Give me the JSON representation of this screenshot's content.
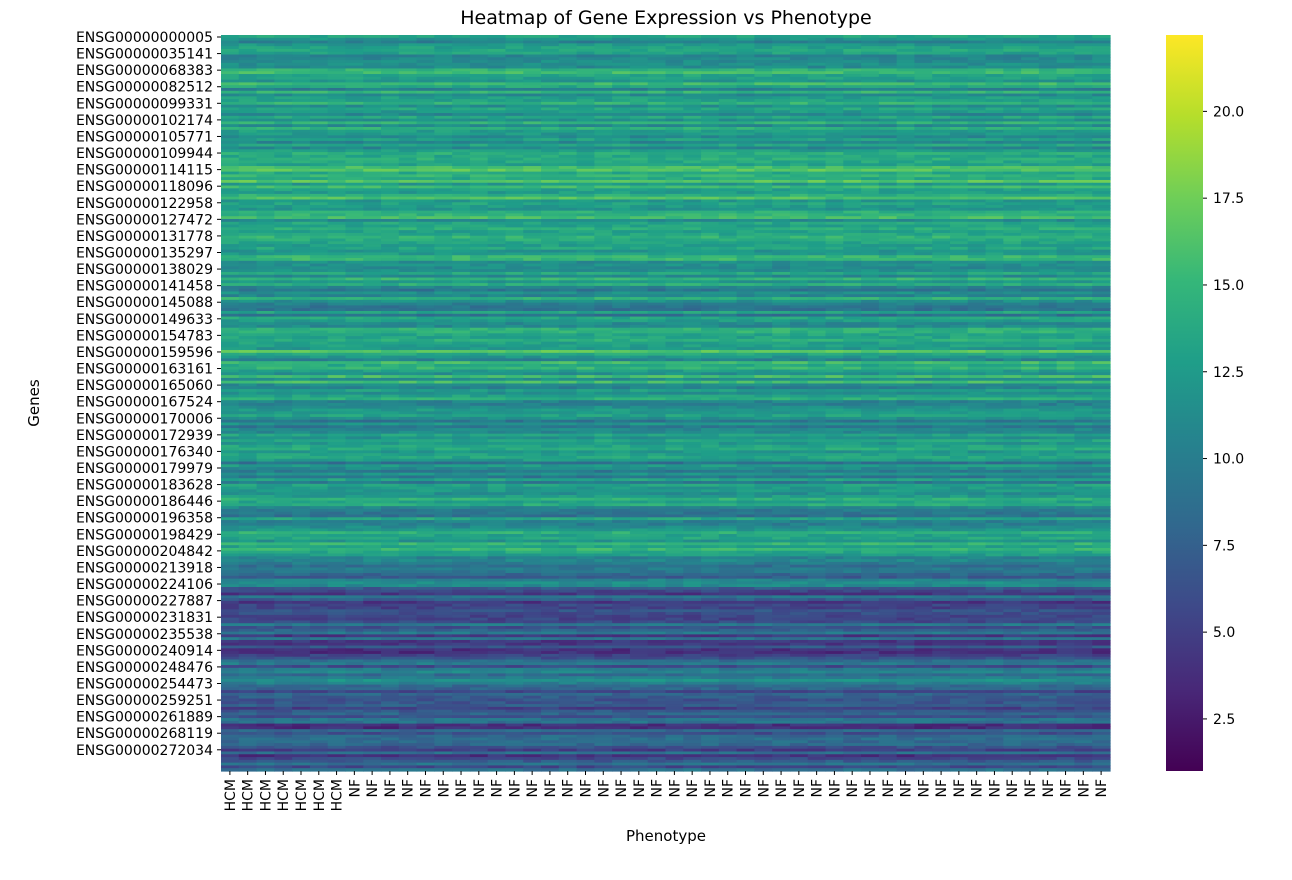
{
  "chart_data": {
    "type": "heatmap",
    "title": "Heatmap of Gene Expression vs Phenotype",
    "xlabel": "Phenotype",
    "ylabel": "Genes",
    "colormap": "viridis",
    "colormap_stops": [
      "#440154",
      "#482878",
      "#3e4989",
      "#31688e",
      "#26828e",
      "#1f9e89",
      "#35b779",
      "#6ece58",
      "#b5de2b",
      "#fde725"
    ],
    "value_range": [
      1.0,
      22.2
    ],
    "colorbar_ticks": [
      2.5,
      5.0,
      7.5,
      10.0,
      12.5,
      15.0,
      17.5,
      20.0
    ],
    "x_tick_labels": [
      "HCM",
      "HCM",
      "HCM",
      "HCM",
      "HCM",
      "HCM",
      "HCM",
      "NF",
      "NF",
      "NF",
      "NF",
      "NF",
      "NF",
      "NF",
      "NF",
      "NF",
      "NF",
      "NF",
      "NF",
      "NF",
      "NF",
      "NF",
      "NF",
      "NF",
      "NF",
      "NF",
      "NF",
      "NF",
      "NF",
      "NF",
      "NF",
      "NF",
      "NF",
      "NF",
      "NF",
      "NF",
      "NF",
      "NF",
      "NF",
      "NF",
      "NF",
      "NF",
      "NF",
      "NF",
      "NF",
      "NF",
      "NF",
      "NF",
      "NF",
      "NF"
    ],
    "y_tick_labels": [
      "ENSG00000000005",
      "ENSG00000035141",
      "ENSG00000068383",
      "ENSG00000082512",
      "ENSG00000099331",
      "ENSG00000102174",
      "ENSG00000105771",
      "ENSG00000109944",
      "ENSG00000114115",
      "ENSG00000118096",
      "ENSG00000122958",
      "ENSG00000127472",
      "ENSG00000131778",
      "ENSG00000135297",
      "ENSG00000138029",
      "ENSG00000141458",
      "ENSG00000145088",
      "ENSG00000149633",
      "ENSG00000154783",
      "ENSG00000159596",
      "ENSG00000163161",
      "ENSG00000165060",
      "ENSG00000167524",
      "ENSG00000170006",
      "ENSG00000172939",
      "ENSG00000176340",
      "ENSG00000179979",
      "ENSG00000183628",
      "ENSG00000186446",
      "ENSG00000196358",
      "ENSG00000198429",
      "ENSG00000204842",
      "ENSG00000213918",
      "ENSG00000224106",
      "ENSG00000227887",
      "ENSG00000231831",
      "ENSG00000235538",
      "ENSG00000240914",
      "ENSG00000248476",
      "ENSG00000254473",
      "ENSG00000259251",
      "ENSG00000261889",
      "ENSG00000268119",
      "ENSG00000272034"
    ],
    "gene_band_mean_expression": [
      12.5,
      12.0,
      14.0,
      12.5,
      13.0,
      13.5,
      13.0,
      14.5,
      15.0,
      14.5,
      13.5,
      13.0,
      14.5,
      13.5,
      12.5,
      12.0,
      11.5,
      12.0,
      14.0,
      13.0,
      13.5,
      12.5,
      13.0,
      11.5,
      12.0,
      11.0,
      12.0,
      12.5,
      11.5,
      12.0,
      13.0,
      10.5,
      9.5,
      7.0,
      6.5,
      7.0,
      6.5,
      7.5,
      11.0,
      6.5,
      7.0,
      6.5,
      7.0,
      6.5
    ]
  }
}
